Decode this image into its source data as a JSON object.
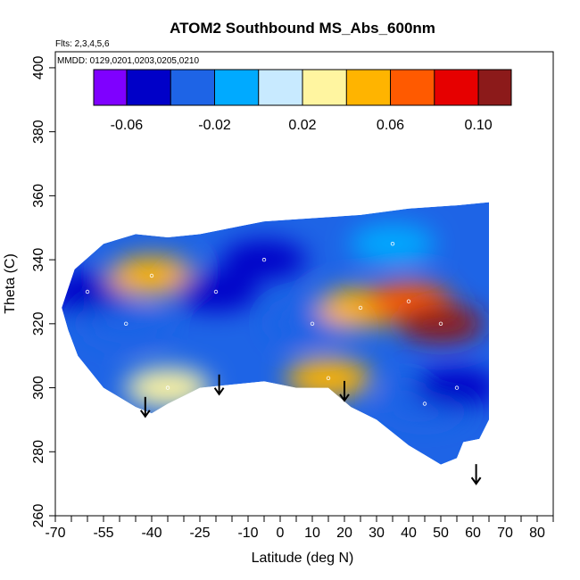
{
  "chart_data": {
    "type": "heatmap",
    "title": "ATOM2 Southbound MS_Abs_600nm",
    "subtitle_flights": "Flts: 2,3,4,5,6",
    "subtitle_dates": "MMDD: 0129,0201,0203,0205,0210",
    "xlabel": "Latitude (deg N)",
    "ylabel": "Theta (C)",
    "xlim": [
      -70,
      85
    ],
    "ylim": [
      260,
      405
    ],
    "x_ticks_labeled": [
      -70,
      -55,
      -40,
      -25,
      -10,
      0,
      10,
      20,
      30,
      40,
      50,
      60,
      70,
      80
    ],
    "x_tick_labels": [
      "-70",
      "-55",
      "-40",
      "-25",
      "-10",
      "0",
      "10",
      "20",
      "30",
      "40",
      "50",
      "60",
      "70",
      "80"
    ],
    "x_ticks_minor": [
      -65,
      -60,
      -50,
      -45,
      -35,
      -30,
      -20,
      -15,
      -5,
      5,
      15,
      25,
      35,
      45,
      55,
      65,
      75,
      85
    ],
    "y_ticks": [
      260,
      280,
      300,
      320,
      340,
      360,
      380,
      400
    ],
    "y_tick_labels": [
      "260",
      "280",
      "300",
      "320",
      "340",
      "360",
      "380",
      "400"
    ],
    "colorbar": {
      "range": [
        -0.075,
        0.115
      ],
      "tick_values": [
        -0.06,
        -0.02,
        0.02,
        0.06,
        0.1
      ],
      "tick_labels": [
        "-0.06",
        "-0.02",
        "0.02",
        "0.06",
        "0.10"
      ],
      "bin_edges": [
        -0.075,
        -0.06,
        -0.04,
        -0.02,
        0.0,
        0.02,
        0.04,
        0.06,
        0.08,
        0.1,
        0.115
      ],
      "colors": [
        "#7f00ff",
        "#0000c8",
        "#1e64e6",
        "#00aaff",
        "#c8eaff",
        "#fff5a0",
        "#ffb400",
        "#ff5a00",
        "#e60000",
        "#8c1a1a"
      ]
    },
    "grid": false,
    "data_region_outline": [
      [
        -68,
        325
      ],
      [
        -64,
        337
      ],
      [
        -55,
        345
      ],
      [
        -45,
        348
      ],
      [
        -35,
        347
      ],
      [
        -25,
        348
      ],
      [
        -15,
        350
      ],
      [
        -5,
        352
      ],
      [
        10,
        353
      ],
      [
        25,
        354
      ],
      [
        40,
        356
      ],
      [
        55,
        357
      ],
      [
        65,
        358
      ],
      [
        65,
        290
      ],
      [
        62,
        284
      ],
      [
        57,
        283
      ],
      [
        55,
        278
      ],
      [
        50,
        276
      ],
      [
        40,
        282
      ],
      [
        30,
        290
      ],
      [
        22,
        294
      ],
      [
        15,
        300
      ],
      [
        5,
        300
      ],
      [
        -5,
        302
      ],
      [
        -15,
        301
      ],
      [
        -25,
        300
      ],
      [
        -35,
        295
      ],
      [
        -40,
        292
      ],
      [
        -45,
        294
      ],
      [
        -55,
        300
      ],
      [
        -63,
        310
      ],
      [
        -66,
        318
      ]
    ],
    "fields": [
      {
        "lat": -60,
        "theta": 330,
        "value": -0.05
      },
      {
        "lat": -48,
        "theta": 320,
        "value": -0.03
      },
      {
        "lat": -40,
        "theta": 335,
        "value": 0.04
      },
      {
        "lat": -35,
        "theta": 300,
        "value": 0.03
      },
      {
        "lat": -20,
        "theta": 330,
        "value": -0.045
      },
      {
        "lat": -5,
        "theta": 340,
        "value": -0.055
      },
      {
        "lat": 10,
        "theta": 320,
        "value": -0.03
      },
      {
        "lat": 15,
        "theta": 303,
        "value": 0.04
      },
      {
        "lat": 25,
        "theta": 325,
        "value": 0.055
      },
      {
        "lat": 40,
        "theta": 327,
        "value": 0.075
      },
      {
        "lat": 50,
        "theta": 320,
        "value": 0.11
      },
      {
        "lat": 45,
        "theta": 295,
        "value": -0.03
      },
      {
        "lat": 55,
        "theta": 300,
        "value": -0.055
      },
      {
        "lat": 35,
        "theta": 345,
        "value": -0.01
      }
    ],
    "arrow_markers_lat": [
      -42,
      -19,
      20,
      61
    ],
    "arrow_markers_theta": [
      291,
      298,
      296,
      270
    ]
  }
}
